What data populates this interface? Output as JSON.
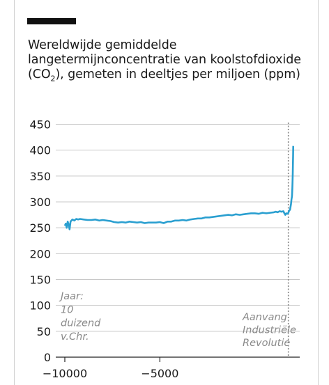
{
  "header": {
    "title_before": "Wereldwijde gemiddelde langetermijnconcentratie van koolstofdioxide (CO",
    "title_sub": "2",
    "title_after": "), gemeten in deeltjes per miljoen (ppm)"
  },
  "colors": {
    "line": "#2a9fd0",
    "grid": "#c8c8c8",
    "marker": "#8a8a8a"
  },
  "chart_data": {
    "type": "line",
    "title": "Wereldwijde gemiddelde langetermijnconcentratie van koolstofdioxide (CO2), gemeten in deeltjes per miljoen (ppm)",
    "xlabel": "",
    "ylabel": "",
    "ylim": [
      0,
      450
    ],
    "xlim": [
      -10000,
      2000
    ],
    "yticks": [
      0,
      50,
      100,
      150,
      200,
      250,
      300,
      350,
      400,
      450
    ],
    "xticks": [
      -10000,
      -5000
    ],
    "xtick_labels": [
      "−10000",
      "−5000"
    ],
    "grid": true,
    "legend": "none",
    "annotations": {
      "start": [
        "Jaar:",
        "10",
        "duizend",
        "v.Chr."
      ],
      "end": [
        "Aanvang",
        "Industriële",
        "Revolutie"
      ],
      "end_marker_x": 1760
    },
    "series": [
      {
        "values": [
          [
            -10000,
            254
          ],
          [
            -9950,
            258
          ],
          [
            -9900,
            250
          ],
          [
            -9850,
            262
          ],
          [
            -9800,
            256
          ],
          [
            -9750,
            247
          ],
          [
            -9700,
            262
          ],
          [
            -9600,
            266
          ],
          [
            -9500,
            264
          ],
          [
            -9400,
            267
          ],
          [
            -9300,
            266
          ],
          [
            -9200,
            267
          ],
          [
            -9000,
            266
          ],
          [
            -8800,
            265
          ],
          [
            -8600,
            265
          ],
          [
            -8400,
            266
          ],
          [
            -8200,
            264
          ],
          [
            -8000,
            265
          ],
          [
            -7800,
            264
          ],
          [
            -7600,
            263
          ],
          [
            -7400,
            261
          ],
          [
            -7200,
            260
          ],
          [
            -7000,
            261
          ],
          [
            -6800,
            260
          ],
          [
            -6600,
            262
          ],
          [
            -6400,
            261
          ],
          [
            -6200,
            260
          ],
          [
            -6000,
            261
          ],
          [
            -5800,
            259
          ],
          [
            -5600,
            260
          ],
          [
            -5400,
            260
          ],
          [
            -5200,
            260
          ],
          [
            -5000,
            261
          ],
          [
            -4800,
            259
          ],
          [
            -4600,
            262
          ],
          [
            -4400,
            262
          ],
          [
            -4200,
            264
          ],
          [
            -4000,
            264
          ],
          [
            -3800,
            265
          ],
          [
            -3600,
            264
          ],
          [
            -3400,
            266
          ],
          [
            -3200,
            267
          ],
          [
            -3000,
            268
          ],
          [
            -2800,
            268
          ],
          [
            -2600,
            270
          ],
          [
            -2400,
            270
          ],
          [
            -2200,
            271
          ],
          [
            -2000,
            272
          ],
          [
            -1800,
            273
          ],
          [
            -1600,
            274
          ],
          [
            -1400,
            275
          ],
          [
            -1200,
            274
          ],
          [
            -1000,
            276
          ],
          [
            -800,
            275
          ],
          [
            -600,
            276
          ],
          [
            -400,
            277
          ],
          [
            -200,
            278
          ],
          [
            0,
            278
          ],
          [
            200,
            277
          ],
          [
            400,
            279
          ],
          [
            600,
            278
          ],
          [
            800,
            279
          ],
          [
            1000,
            280
          ],
          [
            1100,
            281
          ],
          [
            1200,
            280
          ],
          [
            1300,
            282
          ],
          [
            1400,
            281
          ],
          [
            1500,
            282
          ],
          [
            1550,
            278
          ],
          [
            1600,
            275
          ],
          [
            1650,
            278
          ],
          [
            1700,
            277
          ],
          [
            1750,
            278
          ],
          [
            1800,
            283
          ],
          [
            1850,
            285
          ],
          [
            1900,
            296
          ],
          [
            1925,
            305
          ],
          [
            1950,
            311
          ],
          [
            1960,
            317
          ],
          [
            1970,
            326
          ],
          [
            1980,
            339
          ],
          [
            1990,
            354
          ],
          [
            2000,
            369
          ],
          [
            2010,
            389
          ],
          [
            2018,
            408
          ]
        ]
      }
    ]
  }
}
